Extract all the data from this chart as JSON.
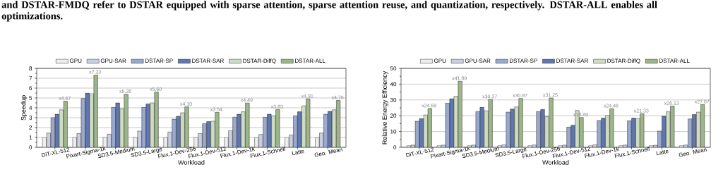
{
  "chart_data": [
    {
      "type": "bar",
      "xlabel": "Workload",
      "ylabel": "Speedup",
      "annotations": [
        "and DSTAR-FMDQ refer to DSTAR equipped with sparse attention, sparse attention reuse, and quantization, respectively. DSTAR-ALL enables all optimizations."
      ],
      "categories": [
        "DiT-XL-512",
        "Pixart-Sigma-1k",
        "SD3.5-Medium",
        "SD3.5-Large",
        "Flux.1-Dev-256",
        "Flux.1-Dev-512",
        "Flux.1-Dev-1k",
        "Flux.1-Schnell",
        "Latte",
        "Geo. Mean"
      ],
      "series": [
        {
          "name": "GPU",
          "color": "#ededed",
          "values": [
            1,
            1,
            1,
            1,
            1,
            1,
            1,
            1,
            1,
            1
          ]
        },
        {
          "name": "GPU-SAR",
          "color": "#c9cfdf",
          "values": [
            1.45,
            1.4,
            1.33,
            1.65,
            1.55,
            1.4,
            1.7,
            1.3,
            1.25,
            1.45
          ]
        },
        {
          "name": "DSTAR-SP",
          "color": "#9aa9cc",
          "values": [
            3.0,
            4.95,
            4.05,
            4.05,
            2.85,
            2.4,
            3.05,
            3.05,
            3.2,
            3.35
          ]
        },
        {
          "name": "DSTAR-SAR",
          "color": "#6077ad",
          "values": [
            3.35,
            5.5,
            4.5,
            4.4,
            3.15,
            2.6,
            3.35,
            3.35,
            3.6,
            3.65
          ]
        },
        {
          "name": "DSTAR-DiffQ",
          "color": "#cfdcc4",
          "values": [
            3.8,
            5.45,
            3.9,
            4.5,
            3.5,
            2.65,
            3.6,
            3.2,
            4.2,
            3.8
          ]
        },
        {
          "name": "DSTAR-ALL",
          "color": "#9db58a",
          "values": [
            4.67,
            7.33,
            5.38,
            5.6,
            4.1,
            3.54,
            4.49,
            3.83,
            4.91,
            4.76
          ],
          "value_labels": [
            "x4.67",
            "x7.33",
            "x5.38",
            "x5.60",
            "x4.10",
            "x3.54",
            "x4.49",
            "x3.83",
            "x4.91",
            "x4.76"
          ]
        }
      ],
      "ylim": [
        0,
        8
      ],
      "yticks": [
        0,
        1,
        2,
        3,
        4,
        5,
        6,
        7,
        8
      ],
      "grid": "y",
      "legend": "top"
    },
    {
      "type": "bar",
      "xlabel": "Workload",
      "ylabel": "Relative Energy Efficiency",
      "categories": [
        "DiT-XL-512",
        "Pixart-Sigma-1k",
        "SD3.5-Medium",
        "SD3.5-Large",
        "Flux.1-Dev-256",
        "Flux.1-Dev-512",
        "Flux.1-Dev-1k",
        "Flux.1-Schnell",
        "Latte",
        "Geo. Mean"
      ],
      "series": [
        {
          "name": "GPU",
          "color": "#ededed",
          "values": [
            1,
            1,
            1,
            1,
            1,
            1,
            1,
            1,
            1,
            1
          ]
        },
        {
          "name": "GPU-SAR",
          "color": "#c9cfdf",
          "values": [
            1.4,
            1.4,
            1.4,
            1.6,
            1.5,
            1.4,
            1.6,
            1.4,
            1.3,
            1.4
          ]
        },
        {
          "name": "DSTAR-SP",
          "color": "#9aa9cc",
          "values": [
            16.5,
            28,
            22.7,
            22.3,
            22.7,
            12.8,
            17,
            16.8,
            10.3,
            18
          ]
        },
        {
          "name": "DSTAR-SAR",
          "color": "#6077ad",
          "values": [
            18.2,
            30.8,
            25.3,
            24.2,
            24,
            14,
            18.5,
            18.5,
            19.7,
            20.8
          ]
        },
        {
          "name": "DSTAR-DiffQ",
          "color": "#cfdcc4",
          "values": [
            20.5,
            32.3,
            23.1,
            25.6,
            19.5,
            23.3,
            20.2,
            18.2,
            22.5,
            22.3
          ]
        },
        {
          "name": "DSTAR-ALL",
          "color": "#9db58a",
          "values": [
            24.59,
            41.89,
            30.37,
            30.97,
            31.25,
            18.89,
            24.46,
            21.33,
            26.13,
            27.07
          ],
          "value_labels": [
            "x24.59",
            "x41.89",
            "x30.37",
            "x30.97",
            "x31.25",
            "x18.89",
            "x24.46",
            "x21.33",
            "x26.13",
            "x27.07"
          ]
        }
      ],
      "ylim": [
        0,
        50
      ],
      "yticks": [
        0,
        10,
        20,
        30,
        40,
        50
      ],
      "grid": "y",
      "legend": "top"
    }
  ]
}
